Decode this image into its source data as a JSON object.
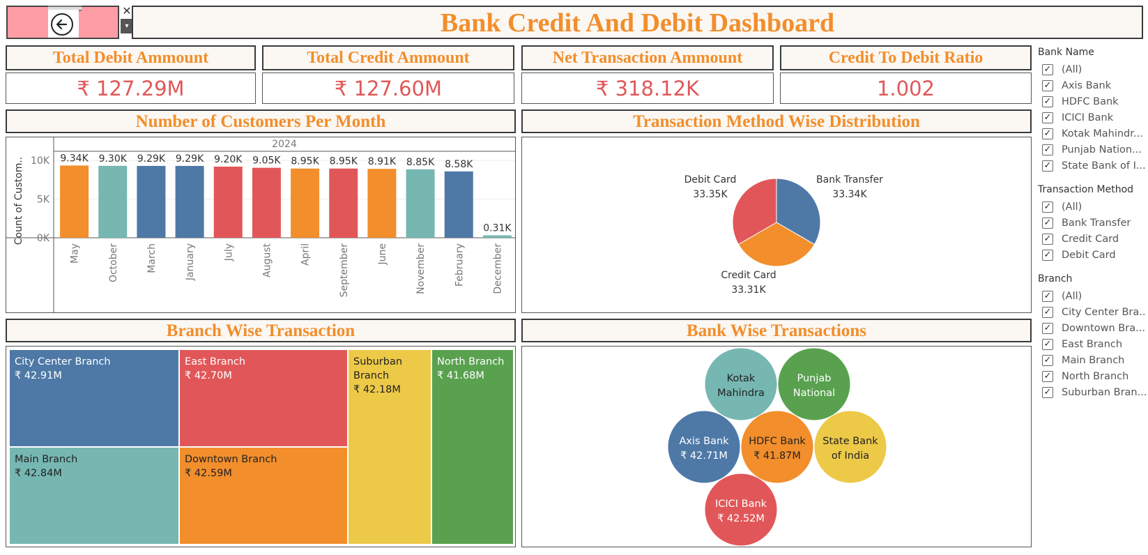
{
  "header": {
    "title": "Bank Credit And Debit Dashboard",
    "back_icon": "back-arrow-icon",
    "close_glyph": "✕",
    "dropdown_glyph": "▾"
  },
  "kpis": [
    {
      "title": "Total Debit Ammount",
      "value": "₹ 127.29M"
    },
    {
      "title": "Total Credit Ammount",
      "value": "₹ 127.60M"
    },
    {
      "title": "Net Transaction Ammount",
      "value": "₹ 318.12K"
    },
    {
      "title": "Credit To Debit Ratio",
      "value": "1.002"
    }
  ],
  "sections": {
    "customers_per_month": "Number of Customers Per Month",
    "method_distribution": "Transaction Method Wise Distribution",
    "branch_wise": "Branch Wise Transaction",
    "bank_wise": "Bank Wise Transactions"
  },
  "chart_data": [
    {
      "type": "bar",
      "title": "Number of Customers Per Month",
      "column_header": "2024",
      "ylabel": "Count of Custom..",
      "yticks": [
        "10K",
        "5K",
        "0K"
      ],
      "ylim": [
        0,
        11000
      ],
      "categories": [
        "May",
        "October",
        "March",
        "January",
        "July",
        "August",
        "April",
        "September",
        "June",
        "November",
        "February",
        "December"
      ],
      "values": [
        9340,
        9300,
        9290,
        9290,
        9200,
        9050,
        8950,
        8950,
        8910,
        8850,
        8580,
        310
      ],
      "labels": [
        "9.34K",
        "9.30K",
        "9.29K",
        "9.29K",
        "9.20K",
        "9.05K",
        "8.95K",
        "8.95K",
        "8.91K",
        "8.85K",
        "8.58K",
        "0.31K"
      ],
      "colors": [
        "#f28e2b",
        "#76b7b2",
        "#4e79a7",
        "#4e79a7",
        "#e15759",
        "#e15759",
        "#f28e2b",
        "#e15759",
        "#f28e2b",
        "#76b7b2",
        "#4e79a7",
        "#76b7b2"
      ]
    },
    {
      "type": "pie",
      "title": "Transaction Method Wise Distribution",
      "slices": [
        {
          "name": "Bank Transfer",
          "value": 33340,
          "label": "33.34K",
          "color": "#4e79a7"
        },
        {
          "name": "Credit Card",
          "value": 33310,
          "label": "33.31K",
          "color": "#f28e2b"
        },
        {
          "name": "Debit Card",
          "value": 33350,
          "label": "33.35K",
          "color": "#e15759"
        }
      ]
    }
  ],
  "treemap": [
    {
      "name": "City Center Branch",
      "value": "₹ 42.91M",
      "color": "#4e79a7",
      "text": "#ffffff"
    },
    {
      "name": "East Branch",
      "value": "₹ 42.70M",
      "color": "#e15759",
      "text": "#ffffff"
    },
    {
      "name": "Suburban Branch",
      "value": "₹ 42.18M",
      "color": "#edc948",
      "text": "#222222"
    },
    {
      "name": "North Branch",
      "value": "₹ 41.68M",
      "color": "#59a14f",
      "text": "#ffffff"
    },
    {
      "name": "Main Branch",
      "value": "₹ 42.84M",
      "color": "#76b7b2",
      "text": "#222222"
    },
    {
      "name": "Downtown Branch",
      "value": "₹ 42.59M",
      "color": "#f28e2b",
      "text": "#222222"
    }
  ],
  "bubbles": [
    {
      "line1": "Kotak",
      "line2": "Mahindra",
      "color": "#76b7b2",
      "text": "#222222"
    },
    {
      "line1": "Punjab",
      "line2": "National",
      "color": "#59a14f",
      "text": "#ffffff"
    },
    {
      "line1": "Axis Bank",
      "line2": "₹ 42.71M",
      "color": "#4e79a7",
      "text": "#ffffff"
    },
    {
      "line1": "HDFC Bank",
      "line2": "₹ 41.87M",
      "color": "#f28e2b",
      "text": "#222222"
    },
    {
      "line1": "State Bank",
      "line2": "of India",
      "color": "#edc948",
      "text": "#222222"
    },
    {
      "line1": "ICICI Bank",
      "line2": "₹ 42.52M",
      "color": "#e15759",
      "text": "#ffffff"
    }
  ],
  "filters": {
    "bank_name": {
      "title": "Bank Name",
      "items": [
        "(All)",
        "Axis Bank",
        "HDFC Bank",
        "ICICI Bank",
        "Kotak Mahindr...",
        "Punjab Nation...",
        "State Bank of I..."
      ]
    },
    "transaction_method": {
      "title": "Transaction Method",
      "items": [
        "(All)",
        "Bank Transfer",
        "Credit Card",
        "Debit Card"
      ]
    },
    "branch": {
      "title": "Branch",
      "items": [
        "(All)",
        "City Center Bra...",
        "Downtown Bra...",
        "East Branch",
        "Main Branch",
        "North Branch",
        "Suburban Bran..."
      ]
    },
    "check_glyph": "✓"
  }
}
